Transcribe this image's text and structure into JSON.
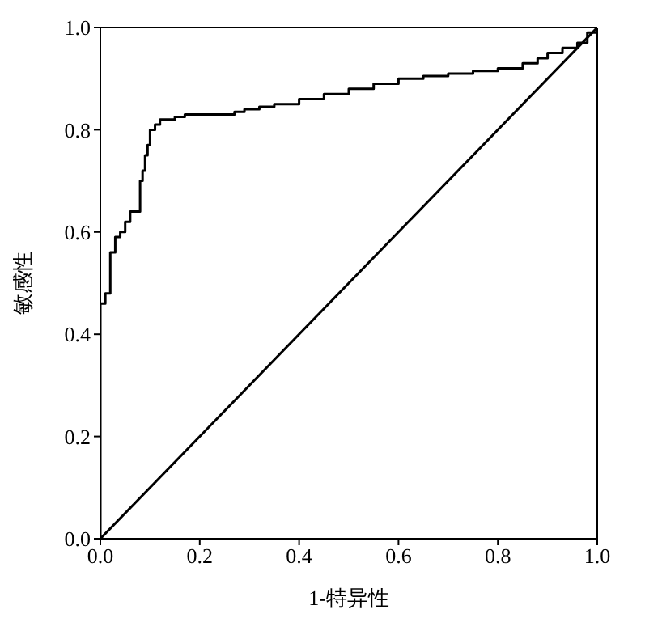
{
  "chart_data": {
    "type": "step",
    "xlabel": "1-特异性",
    "ylabel": "敏感性",
    "xlim": [
      0,
      1
    ],
    "ylim": [
      0,
      1
    ],
    "xticks": [
      {
        "value": 0,
        "label": "0.0"
      },
      {
        "value": 0.2,
        "label": "0.2"
      },
      {
        "value": 0.4,
        "label": "0.4"
      },
      {
        "value": 0.6,
        "label": "0.6"
      },
      {
        "value": 0.8,
        "label": "0.8"
      },
      {
        "value": 1,
        "label": "1.0"
      }
    ],
    "yticks": [
      {
        "value": 0,
        "label": "0.0"
      },
      {
        "value": 0.2,
        "label": "0.2"
      },
      {
        "value": 0.4,
        "label": "0.4"
      },
      {
        "value": 0.6,
        "label": "0.6"
      },
      {
        "value": 0.8,
        "label": "0.8"
      },
      {
        "value": 1,
        "label": "1.0"
      }
    ],
    "marker": "none",
    "line_style": "solid",
    "series": [
      {
        "color": "#000000",
        "x": [
          0,
          0,
          0.01,
          0.01,
          0.02,
          0.02,
          0.03,
          0.03,
          0.04,
          0.04,
          0.05,
          0.05,
          0.06,
          0.08,
          0.08,
          0.085,
          0.09,
          0.095,
          0.1,
          0.11,
          0.12,
          0.15,
          0.17,
          0.25,
          0.27,
          0.29,
          0.32,
          0.35,
          0.4,
          0.45,
          0.5,
          0.55,
          0.6,
          0.65,
          0.7,
          0.75,
          0.8,
          0.85,
          0.88,
          0.9,
          0.93,
          0.96,
          0.98,
          1
        ],
        "values": [
          0,
          0.46,
          0.46,
          0.48,
          0.48,
          0.56,
          0.56,
          0.59,
          0.59,
          0.6,
          0.6,
          0.62,
          0.64,
          0.64,
          0.7,
          0.72,
          0.75,
          0.77,
          0.8,
          0.81,
          0.82,
          0.825,
          0.83,
          0.83,
          0.835,
          0.84,
          0.845,
          0.85,
          0.86,
          0.87,
          0.88,
          0.89,
          0.9,
          0.905,
          0.91,
          0.915,
          0.92,
          0.93,
          0.94,
          0.95,
          0.96,
          0.97,
          0.99,
          1
        ]
      },
      {
        "type": "line",
        "color": "#000000",
        "x": [
          0,
          1
        ],
        "values": [
          0,
          1
        ]
      }
    ]
  }
}
